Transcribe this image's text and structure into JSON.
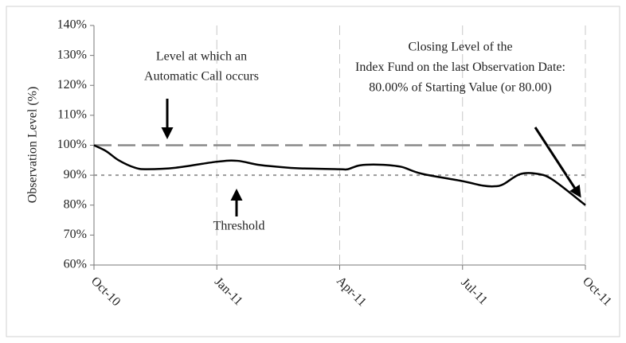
{
  "chart_data": {
    "type": "line",
    "y_label": "Observation Level (%)",
    "x": [
      0,
      0.3,
      0.6,
      1.0,
      1.3,
      2,
      3,
      3.5,
      4,
      4.5,
      5,
      6,
      6.2,
      6.5,
      7,
      7.5,
      8,
      9,
      9.5,
      9.8,
      10,
      10.4,
      10.8,
      11.2,
      12
    ],
    "series": [
      {
        "color": "#000000",
        "values": [
          100,
          98,
          95,
          92.5,
          92,
          92.5,
          94.5,
          94.8,
          93.5,
          92.8,
          92.3,
          92,
          92,
          93.3,
          93.5,
          92.8,
          90.5,
          88,
          86.5,
          86.3,
          87,
          90.3,
          90.5,
          88.5,
          80
        ]
      }
    ],
    "xlim": [
      0,
      12
    ],
    "xticks": [
      {
        "value": 0,
        "label": "Oct-10"
      },
      {
        "value": 3,
        "label": "Jan-11"
      },
      {
        "value": 6,
        "label": "Apr-11"
      },
      {
        "value": 9,
        "label": "Jul-11"
      },
      {
        "value": 12,
        "label": "Oct-11"
      }
    ],
    "ylim": [
      60,
      140
    ],
    "yticks": [
      {
        "value": 60,
        "label": "60%"
      },
      {
        "value": 70,
        "label": "70%"
      },
      {
        "value": 80,
        "label": "80%"
      },
      {
        "value": 90,
        "label": "90%"
      },
      {
        "value": 100,
        "label": "100%"
      },
      {
        "value": 110,
        "label": "110%"
      },
      {
        "value": 120,
        "label": "120%"
      },
      {
        "value": 130,
        "label": "130%"
      },
      {
        "value": 140,
        "label": "140%"
      }
    ],
    "reference_lines": [
      {
        "value": 100,
        "style": "dashed"
      },
      {
        "value": 90,
        "style": "dotted"
      }
    ],
    "annotations": [
      {
        "lines": [
          "Level at which an",
          "Automatic Call occurs"
        ]
      },
      {
        "lines": [
          "Threshold"
        ]
      },
      {
        "lines": [
          "Closing Level of the",
          "Index Fund on the last Observation Date:",
          "80.00% of Starting Value (or 80.00)"
        ]
      }
    ]
  }
}
